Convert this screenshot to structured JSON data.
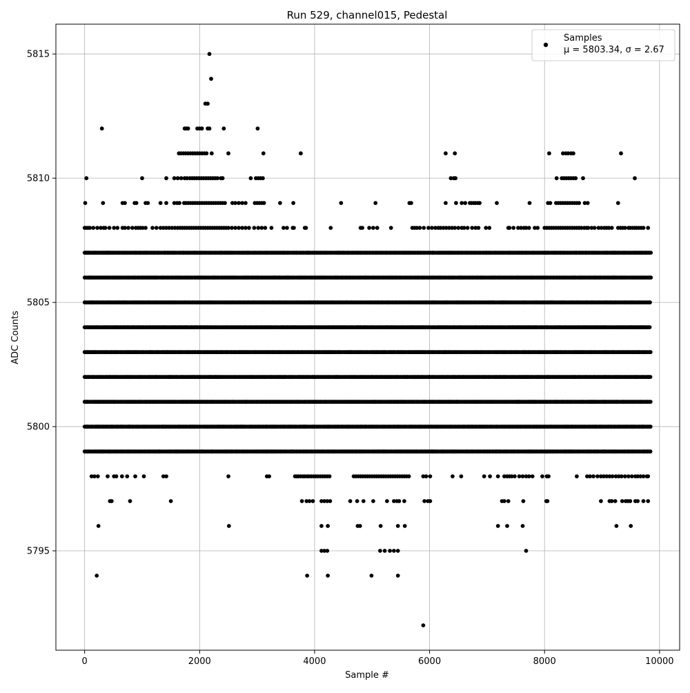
{
  "chart_data": {
    "type": "scatter",
    "title": "Run 529, channel015, Pedestal",
    "xlabel": "Sample #",
    "ylabel": "ADC Counts",
    "xlim": [
      -500,
      10350
    ],
    "ylim": [
      5791.0,
      5816.2
    ],
    "xticks": [
      0,
      2000,
      4000,
      6000,
      8000,
      10000
    ],
    "xtick_labels": [
      "0",
      "2000",
      "4000",
      "6000",
      "8000",
      "10000"
    ],
    "yticks": [
      5795,
      5800,
      5805,
      5810,
      5815
    ],
    "ytick_labels": [
      "5795",
      "5800",
      "5805",
      "5810",
      "5815"
    ],
    "grid": true,
    "legend": {
      "placement": "top-right",
      "entries": [
        {
          "name": "Samples",
          "detail": "μ = 5803.34, σ = 2.67"
        }
      ]
    },
    "series": [
      {
        "name": "Samples",
        "color": "#000000",
        "marker": "circle",
        "dense_bands": [
          {
            "y": 5807,
            "x_start": 0,
            "x_end": 9850
          },
          {
            "y": 5806,
            "x_start": 0,
            "x_end": 9850
          },
          {
            "y": 5805,
            "x_start": 0,
            "x_end": 9850
          },
          {
            "y": 5804,
            "x_start": 0,
            "x_end": 9850
          },
          {
            "y": 5803,
            "x_start": 0,
            "x_end": 9850
          },
          {
            "y": 5802,
            "x_start": 0,
            "x_end": 9850
          },
          {
            "y": 5801,
            "x_start": 0,
            "x_end": 9850
          },
          {
            "y": 5800,
            "x_start": 0,
            "x_end": 9850
          },
          {
            "y": 5799,
            "x_start": 0,
            "x_end": 9850
          }
        ],
        "sparse_levels": [
          {
            "y": 5808,
            "x": [
              0,
              30,
              60,
              90,
              150,
              220,
              280,
              330,
              360,
              430,
              510,
              570,
              660,
              700,
              760,
              830,
              890,
              930,
              970,
              1010,
              1060,
              1180,
              1250,
              1320,
              1370,
              1420,
              1470,
              1520,
              1570,
              1620,
              1660,
              1700,
              1740,
              1780,
              1820,
              1860,
              1900,
              1940,
              1980,
              2020,
              2060,
              2100,
              2140,
              2180,
              2220,
              2260,
              2300,
              2340,
              2380,
              2420,
              2460,
              2500,
              2560,
              2620,
              2680,
              2740,
              2800,
              2860,
              2950,
              3020,
              3080,
              3140,
              3250,
              3460,
              3520,
              3620,
              3640,
              3830,
              3850,
              4280,
              4800,
              4830,
              4950,
              5020,
              5090,
              5330,
              5700,
              5740,
              5780,
              5830,
              5900,
              5980,
              6040,
              6100,
              6150,
              6190,
              6240,
              6290,
              6340,
              6390,
              6440,
              6500,
              6560,
              6600,
              6660,
              6740,
              6800,
              6850,
              6980,
              7040,
              7370,
              7390,
              7460,
              7540,
              7590,
              7640,
              7680,
              7730,
              7830,
              7880,
              8000,
              8040,
              8080,
              8120,
              8160,
              8200,
              8240,
              8280,
              8320,
              8360,
              8400,
              8440,
              8480,
              8520,
              8560,
              8600,
              8640,
              8690,
              8730,
              8760,
              8820,
              8870,
              8940,
              8990,
              9040,
              9080,
              9120,
              9170,
              9280,
              9320,
              9360,
              9400,
              9460,
              9490,
              9530,
              9570,
              9600,
              9640,
              9680,
              9720,
              9800
            ]
          },
          {
            "y": 5809,
            "x": [
              10,
              320,
              660,
              700,
              870,
              900,
              1060,
              1100,
              1320,
              1420,
              1560,
              1610,
              1650,
              1730,
              1760,
              1800,
              1840,
              1880,
              1920,
              1960,
              2000,
              2040,
              2080,
              2120,
              2160,
              2200,
              2240,
              2280,
              2320,
              2360,
              2400,
              2440,
              2570,
              2620,
              2680,
              2740,
              2800,
              2960,
              3000,
              3040,
              3080,
              3120,
              3400,
              3630,
              4460,
              5060,
              5650,
              5680,
              6280,
              6460,
              6560,
              6620,
              6700,
              6730,
              6770,
              6800,
              6840,
              6870,
              7170,
              7740,
              8060,
              8100,
              8200,
              8240,
              8280,
              8320,
              8360,
              8400,
              8440,
              8480,
              8520,
              8560,
              8600,
              8700,
              8750,
              9280
            ]
          },
          {
            "y": 5810,
            "x": [
              30,
              1000,
              1420,
              1560,
              1620,
              1680,
              1740,
              1780,
              1830,
              1870,
              1910,
              1950,
              1990,
              2030,
              2070,
              2110,
              2150,
              2190,
              2230,
              2270,
              2310,
              2370,
              2400,
              2890,
              2980,
              3020,
              3060,
              3100,
              6370,
              6420,
              6450,
              8210,
              8300,
              8340,
              8380,
              8420,
              8460,
              8500,
              8540,
              8670,
              9570
            ]
          },
          {
            "y": 5811,
            "x": [
              1640,
              1680,
              1720,
              1760,
              1800,
              1840,
              1880,
              1920,
              1960,
              2000,
              2040,
              2080,
              2120,
              2210,
              2500,
              3110,
              3760,
              6280,
              6440,
              8080,
              8320,
              8370,
              8410,
              8460,
              8500,
              9330
            ]
          },
          {
            "y": 5812,
            "x": [
              300,
              1740,
              1770,
              1800,
              1960,
              2000,
              2040,
              2140,
              2170,
              2420,
              3010
            ]
          },
          {
            "y": 5813,
            "x": [
              2100,
              2140
            ]
          },
          {
            "y": 5814,
            "x": [
              2200
            ]
          },
          {
            "y": 5815,
            "x": [
              2170
            ]
          },
          {
            "y": 5798,
            "x": [
              120,
              170,
              230,
              400,
              510,
              550,
              650,
              740,
              880,
              1030,
              1370,
              1420,
              2500,
              3170,
              3210,
              3660,
              3690,
              3720,
              3760,
              3800,
              3830,
              3870,
              3900,
              3940,
              3980,
              4020,
              4060,
              4100,
              4140,
              4180,
              4220,
              4260,
              4680,
              4720,
              4760,
              4800,
              4840,
              4880,
              4920,
              4960,
              5000,
              5040,
              5080,
              5120,
              5160,
              5200,
              5240,
              5280,
              5320,
              5360,
              5400,
              5440,
              5480,
              5520,
              5560,
              5600,
              5640,
              5890,
              5940,
              6010,
              6400,
              6550,
              6950,
              7050,
              7190,
              7300,
              7350,
              7390,
              7430,
              7480,
              7560,
              7620,
              7680,
              7730,
              7790,
              7960,
              8040,
              8070,
              8560,
              8740,
              8790,
              8850,
              8920,
              8980,
              9030,
              9080,
              9130,
              9180,
              9240,
              9290,
              9340,
              9400,
              9460,
              9520,
              9580,
              9620,
              9670,
              9720,
              9780,
              9800
            ]
          },
          {
            "y": 5797,
            "x": [
              440,
              470,
              790,
              1500,
              3780,
              3860,
              3910,
              3970,
              4120,
              4170,
              4220,
              4270,
              4620,
              4740,
              4850,
              5020,
              5260,
              5380,
              5430,
              5470,
              5560,
              5910,
              5970,
              6010,
              7260,
              7300,
              7370,
              7630,
              8030,
              8050,
              8980,
              9130,
              9170,
              9230,
              9350,
              9410,
              9450,
              9490,
              9580,
              9620,
              9720,
              9800
            ]
          },
          {
            "y": 5796,
            "x": [
              240,
              2510,
              4120,
              4230,
              4750,
              4790,
              5150,
              5450,
              5570,
              7190,
              7350,
              7620,
              9250,
              9500
            ]
          },
          {
            "y": 5795,
            "x": [
              4120,
              4170,
              4220,
              5140,
              5220,
              5310,
              5380,
              5450,
              7680
            ]
          },
          {
            "y": 5794,
            "x": [
              210,
              3870,
              4230,
              4990,
              5450
            ]
          },
          {
            "y": 5792,
            "x": [
              5890
            ]
          }
        ]
      }
    ]
  }
}
